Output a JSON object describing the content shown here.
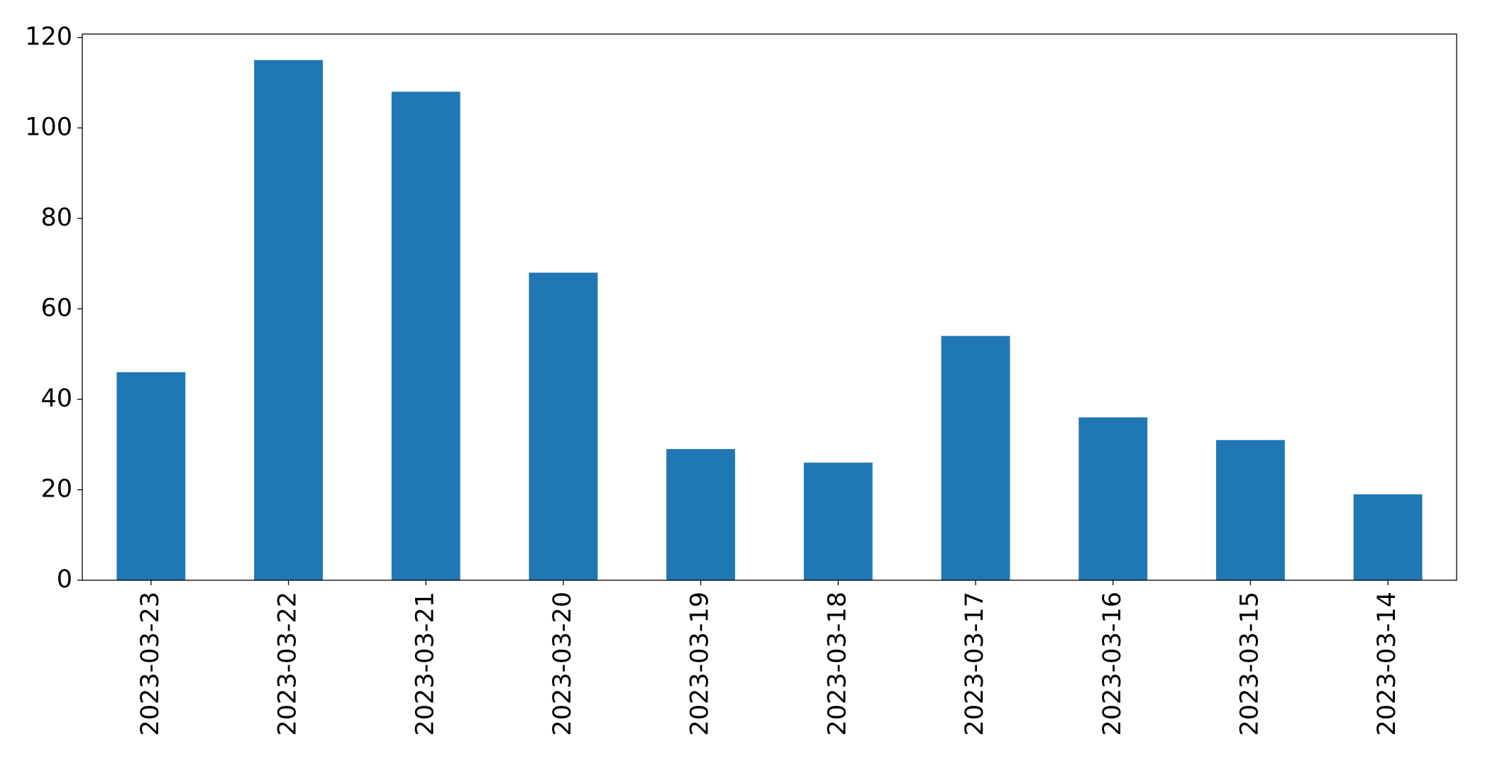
{
  "chart_data": {
    "type": "bar",
    "categories": [
      "2023-03-23",
      "2023-03-22",
      "2023-03-21",
      "2023-03-20",
      "2023-03-19",
      "2023-03-18",
      "2023-03-17",
      "2023-03-16",
      "2023-03-15",
      "2023-03-14"
    ],
    "values": [
      46,
      115,
      108,
      68,
      29,
      26,
      54,
      36,
      31,
      19
    ],
    "color": "#1f77b4",
    "ylim": [
      0,
      120.75
    ],
    "yticks": [
      0,
      20,
      40,
      60,
      80,
      100,
      120
    ],
    "grid": false
  }
}
